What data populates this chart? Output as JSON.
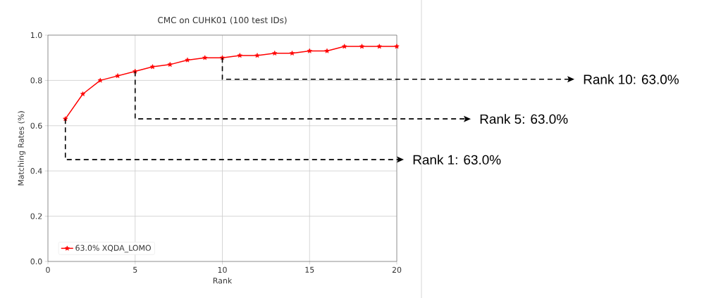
{
  "chart_data": {
    "type": "line",
    "title": "CMC on CUHK01 (100 test IDs)",
    "xlabel": "Rank",
    "ylabel": "Matching Rates (%)",
    "x": [
      1,
      2,
      3,
      4,
      5,
      6,
      7,
      8,
      9,
      10,
      11,
      12,
      13,
      14,
      15,
      16,
      17,
      18,
      19,
      20
    ],
    "series": [
      {
        "name": "63.0% XQDA_LOMO",
        "color": "#ff0000",
        "values": [
          0.63,
          0.74,
          0.8,
          0.82,
          0.84,
          0.86,
          0.87,
          0.89,
          0.9,
          0.9,
          0.91,
          0.91,
          0.92,
          0.92,
          0.93,
          0.93,
          0.95,
          0.95,
          0.95,
          0.95
        ]
      }
    ],
    "xlim": [
      0,
      20
    ],
    "ylim": [
      0.0,
      1.0
    ],
    "xticks": [
      0,
      5,
      10,
      15,
      20
    ],
    "yticks": [
      {
        "value": 0,
        "label": "0.0"
      },
      0.2,
      0.4,
      0.6,
      0.8,
      {
        "value": 1,
        "label": "1.0"
      }
    ],
    "annotations": [
      {
        "text": "Rank 1: 63.0%",
        "x": 1,
        "y": 0.63
      },
      {
        "text": "Rank 5: 63.0%",
        "x": 5,
        "y": 0.84
      },
      {
        "text": "Rank 10: 63.0%",
        "x": 10,
        "y": 0.9
      }
    ],
    "grid": true,
    "legend": "bottom left",
    "marker": "star",
    "line_style": "solid"
  }
}
